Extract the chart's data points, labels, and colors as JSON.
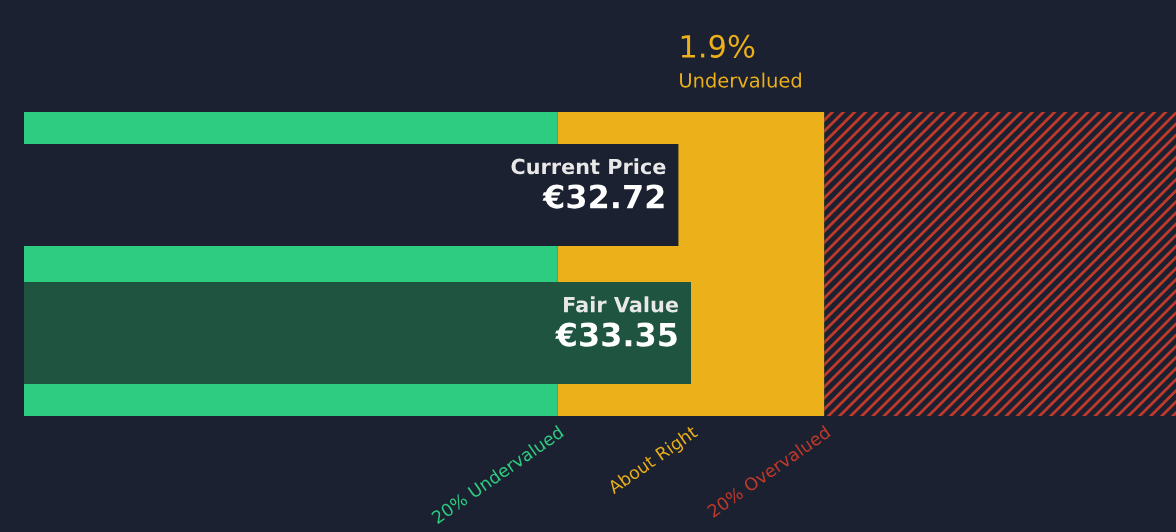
{
  "chart_data": {
    "type": "bar",
    "orientation": "horizontal",
    "categories": [
      "Current Price",
      "Fair Value"
    ],
    "values": [
      32.72,
      33.35
    ],
    "colors": [
      "#1b2130",
      "#1e5440"
    ],
    "value_labels": [
      "€32.72",
      "€33.35"
    ],
    "xlim": [
      0,
      57.6
    ],
    "bands": [
      {
        "axis": "x",
        "from": 0,
        "to": 26.68,
        "label": "20% Undervalued",
        "color": "#2ecc80"
      },
      {
        "axis": "x",
        "from": 26.68,
        "to": 40.02,
        "label": "About Right",
        "color": "#ecb01a"
      },
      {
        "axis": "x",
        "from": 40.02,
        "to": 57.6,
        "label": "20% Overvalued",
        "color": "#c0392b"
      }
    ],
    "annotations": [
      "1.9%",
      "Undervalued"
    ]
  }
}
